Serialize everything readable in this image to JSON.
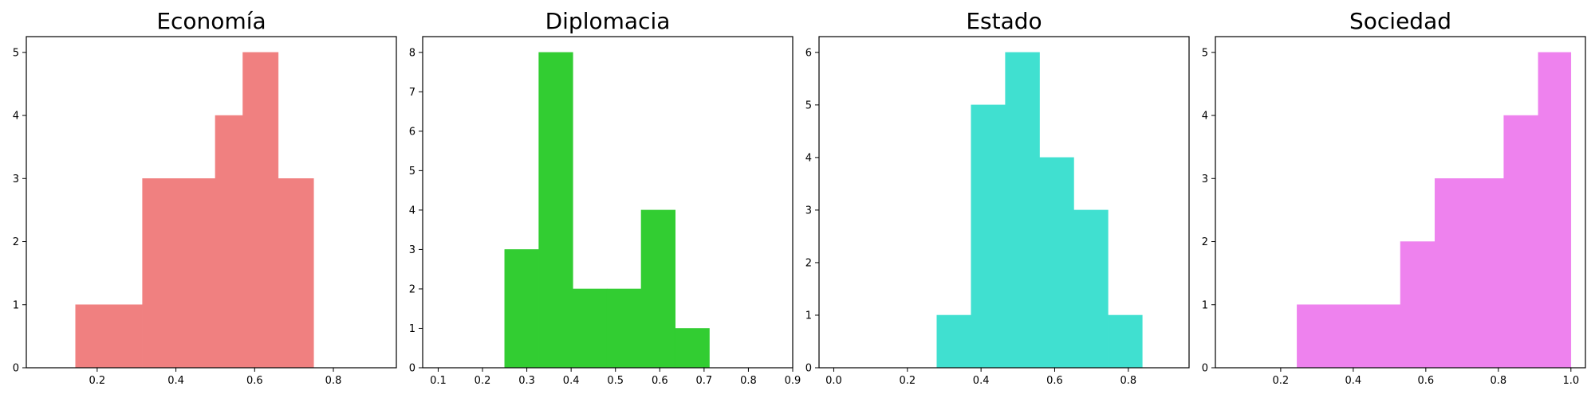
{
  "chart_data": [
    {
      "type": "histogram",
      "title": "Economía",
      "color": "#F08080",
      "xlim": [
        0.02,
        0.96
      ],
      "ylim": [
        0,
        5.25
      ],
      "xticks": [
        0.2,
        0.4,
        0.6,
        0.8
      ],
      "xtick_labels": [
        "0.2",
        "0.4",
        "0.6",
        "0.8"
      ],
      "yticks": [
        0,
        1,
        2,
        3,
        4,
        5
      ],
      "ytick_labels": [
        "0",
        "1",
        "2",
        "3",
        "4",
        "5"
      ],
      "bins": [
        {
          "x0": 0.145,
          "x1": 0.23,
          "count": 1
        },
        {
          "x0": 0.23,
          "x1": 0.315,
          "count": 1
        },
        {
          "x0": 0.315,
          "x1": 0.4,
          "count": 3
        },
        {
          "x0": 0.4,
          "x1": 0.5,
          "count": 3
        },
        {
          "x0": 0.5,
          "x1": 0.57,
          "count": 4
        },
        {
          "x0": 0.57,
          "x1": 0.66,
          "count": 5
        },
        {
          "x0": 0.66,
          "x1": 0.75,
          "count": 3
        }
      ]
    },
    {
      "type": "histogram",
      "title": "Diplomacia",
      "color": "#32CD32",
      "xlim": [
        0.065,
        0.9
      ],
      "ylim": [
        0,
        8.4
      ],
      "xticks": [
        0.1,
        0.2,
        0.3,
        0.4,
        0.5,
        0.6,
        0.7,
        0.8,
        0.9
      ],
      "xtick_labels": [
        "0.1",
        "0.2",
        "0.3",
        "0.4",
        "0.5",
        "0.6",
        "0.7",
        "0.8",
        "0.9"
      ],
      "yticks": [
        0,
        1,
        2,
        3,
        4,
        5,
        6,
        7,
        8
      ],
      "ytick_labels": [
        "0",
        "1",
        "2",
        "3",
        "4",
        "5",
        "6",
        "7",
        "8"
      ],
      "bins": [
        {
          "x0": 0.25,
          "x1": 0.327,
          "count": 3
        },
        {
          "x0": 0.327,
          "x1": 0.404,
          "count": 8
        },
        {
          "x0": 0.404,
          "x1": 0.481,
          "count": 2
        },
        {
          "x0": 0.481,
          "x1": 0.558,
          "count": 2
        },
        {
          "x0": 0.558,
          "x1": 0.635,
          "count": 4
        },
        {
          "x0": 0.635,
          "x1": 0.712,
          "count": 1
        }
      ]
    },
    {
      "type": "histogram",
      "title": "Estado",
      "color": "#40E0D0",
      "xlim": [
        -0.04,
        0.965
      ],
      "ylim": [
        0,
        6.3
      ],
      "xticks": [
        0.0,
        0.2,
        0.4,
        0.6,
        0.8
      ],
      "xtick_labels": [
        "0.0",
        "0.2",
        "0.4",
        "0.6",
        "0.8"
      ],
      "yticks": [
        0,
        1,
        2,
        3,
        4,
        5,
        6
      ],
      "ytick_labels": [
        "0",
        "1",
        "2",
        "3",
        "4",
        "5",
        "6"
      ],
      "bins": [
        {
          "x0": 0.28,
          "x1": 0.373,
          "count": 1
        },
        {
          "x0": 0.373,
          "x1": 0.466,
          "count": 5
        },
        {
          "x0": 0.466,
          "x1": 0.559,
          "count": 6
        },
        {
          "x0": 0.559,
          "x1": 0.652,
          "count": 4
        },
        {
          "x0": 0.652,
          "x1": 0.745,
          "count": 3
        },
        {
          "x0": 0.745,
          "x1": 0.838,
          "count": 1
        }
      ]
    },
    {
      "type": "histogram",
      "title": "Sociedad",
      "color": "#EE82EE",
      "xlim": [
        0.02,
        1.04
      ],
      "ylim": [
        0,
        5.25
      ],
      "xticks": [
        0.2,
        0.4,
        0.6,
        0.8,
        1.0
      ],
      "xtick_labels": [
        "0.2",
        "0.4",
        "0.6",
        "0.8",
        "1.0"
      ],
      "yticks": [
        0,
        1,
        2,
        3,
        4,
        5
      ],
      "ytick_labels": [
        "0",
        "1",
        "2",
        "3",
        "4",
        "5"
      ],
      "bins": [
        {
          "x0": 0.245,
          "x1": 0.34,
          "count": 1
        },
        {
          "x0": 0.34,
          "x1": 0.435,
          "count": 1
        },
        {
          "x0": 0.435,
          "x1": 0.53,
          "count": 1
        },
        {
          "x0": 0.53,
          "x1": 0.625,
          "count": 2
        },
        {
          "x0": 0.625,
          "x1": 0.72,
          "count": 3
        },
        {
          "x0": 0.72,
          "x1": 0.815,
          "count": 3
        },
        {
          "x0": 0.815,
          "x1": 0.91,
          "count": 4
        },
        {
          "x0": 0.91,
          "x1": 1.0,
          "count": 5
        }
      ]
    }
  ]
}
